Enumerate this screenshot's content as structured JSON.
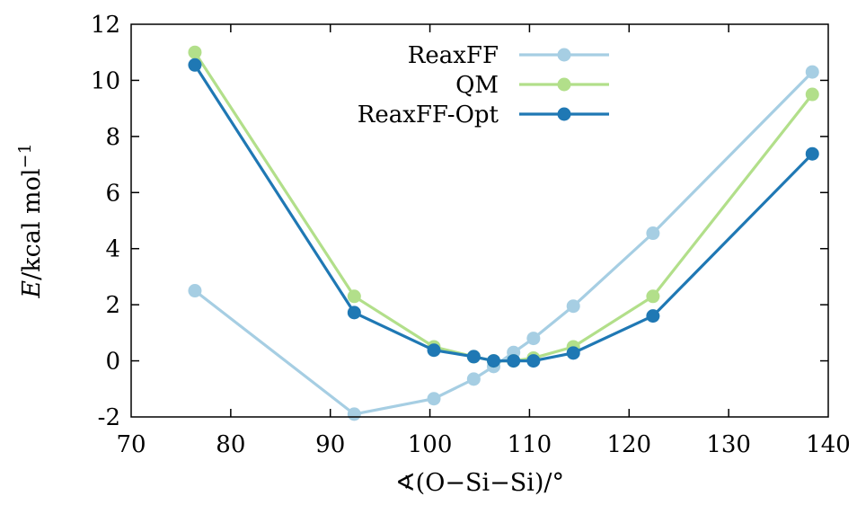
{
  "chart_data": {
    "type": "line",
    "title": "",
    "xlabel": "∢(O−Si−Si)/°",
    "ylabel": "E/kcal mol⁻¹",
    "ylabel_parts": {
      "var": "E",
      "unit": "/kcal mol",
      "exp": "−1"
    },
    "xlim": [
      70,
      140
    ],
    "ylim": [
      -2,
      12
    ],
    "xticks": [
      70,
      80,
      90,
      100,
      110,
      120,
      130,
      140
    ],
    "yticks": [
      -2,
      0,
      2,
      4,
      6,
      8,
      10,
      12
    ],
    "grid": false,
    "legend_position": "top-center",
    "series": [
      {
        "name": "ReaxFF",
        "color": "#a6cee3",
        "x": [
          76.4,
          92.4,
          100.4,
          104.4,
          106.4,
          108.4,
          110.4,
          114.4,
          122.4,
          138.4
        ],
        "y": [
          2.5,
          -1.9,
          -1.35,
          -0.65,
          -0.2,
          0.3,
          0.8,
          1.95,
          4.55,
          10.3
        ]
      },
      {
        "name": "QM",
        "color": "#b2df8a",
        "x": [
          76.4,
          92.4,
          100.4,
          104.4,
          106.4,
          108.4,
          110.4,
          114.4,
          122.4,
          138.4
        ],
        "y": [
          11.0,
          2.3,
          0.5,
          0.15,
          0.0,
          0.0,
          0.1,
          0.5,
          2.3,
          9.5
        ]
      },
      {
        "name": "ReaxFF-Opt",
        "color": "#1f78b4",
        "x": [
          76.4,
          92.4,
          100.4,
          104.4,
          106.4,
          108.4,
          110.4,
          114.4,
          122.4,
          138.4
        ],
        "y": [
          10.55,
          1.72,
          0.38,
          0.15,
          0.0,
          0.0,
          0.0,
          0.28,
          1.6,
          7.38
        ]
      }
    ]
  }
}
